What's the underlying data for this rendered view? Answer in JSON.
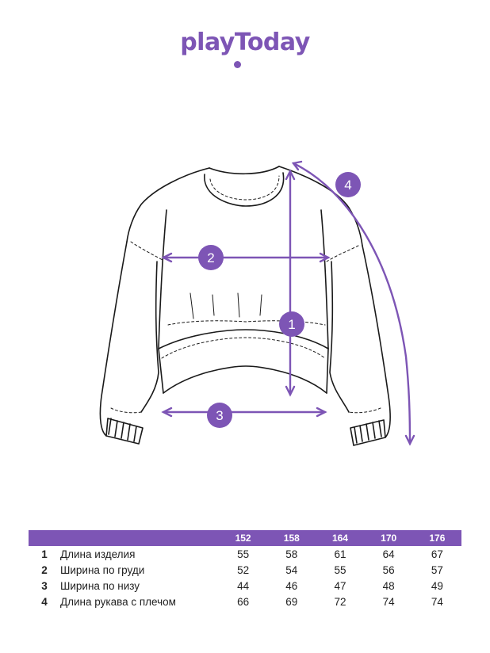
{
  "brand": {
    "logo_text": "playToday",
    "accent_color": "#7d55b5"
  },
  "badges": {
    "length": "1",
    "chest": "2",
    "hem": "3",
    "sleeve": "4"
  },
  "table": {
    "header": {
      "corner": "",
      "sizes": [
        "152",
        "158",
        "164",
        "170",
        "176"
      ]
    },
    "rows": [
      {
        "num": "1",
        "label": "Длина изделия",
        "values": [
          "55",
          "58",
          "61",
          "64",
          "67"
        ]
      },
      {
        "num": "2",
        "label": "Ширина по груди",
        "values": [
          "52",
          "54",
          "55",
          "56",
          "57"
        ]
      },
      {
        "num": "3",
        "label": "Ширина по низу",
        "values": [
          "44",
          "46",
          "47",
          "48",
          "49"
        ]
      },
      {
        "num": "4",
        "label": "Длина рукава с плечом",
        "values": [
          "66",
          "69",
          "72",
          "74",
          "74"
        ]
      }
    ]
  }
}
